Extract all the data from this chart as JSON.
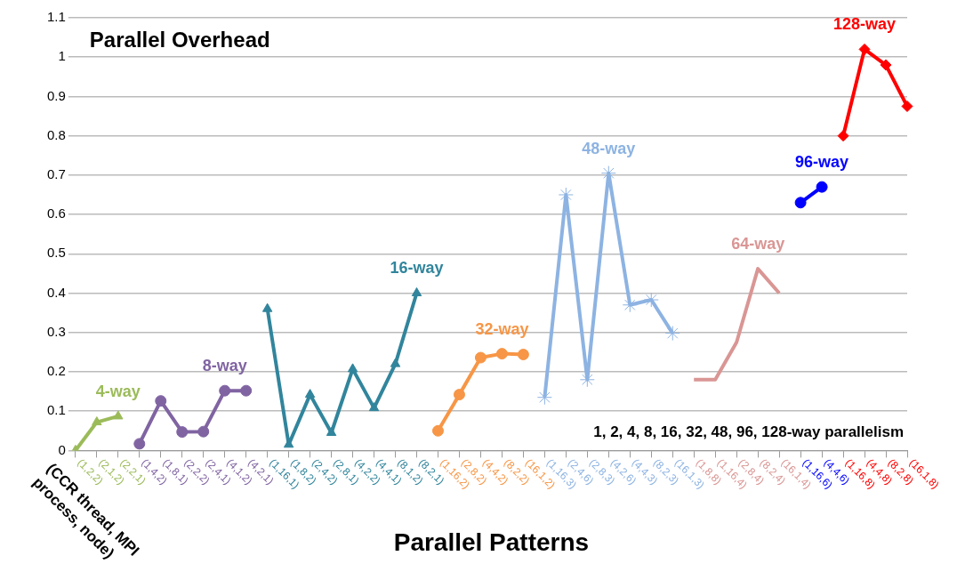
{
  "chart_data": {
    "type": "line",
    "categories": [
      "(1,2,2)",
      "(2,1,2)",
      "(2,2,1)",
      "(1,4,2)",
      "(1,8,1)",
      "(2,2,2)",
      "(2,4,1)",
      "(4,1,2)",
      "(4,2,1)",
      "(1,16,1)",
      "(1,8,2)",
      "(2,4,2)",
      "(2,8,1)",
      "(4,2,2)",
      "(4,4,1)",
      "(8,1,2)",
      "(8,2,1)",
      "(1,16,2)",
      "(2,8,2)",
      "(4,4,2)",
      "(8,2,2)",
      "(16,1,2)",
      "(1,16,3)",
      "(2,4,6)",
      "(2,8,3)",
      "(4,2,6)",
      "(4,4,3)",
      "(8,2,3)",
      "(16,1,3)",
      "(1,8,8)",
      "(1,16,4)",
      "(2,8,4)",
      "(8,2,4)",
      "(16,1,4)",
      "(1,16,6)",
      "(4,4,6)",
      "(1,16,8)",
      "(4,4,8)",
      "(8,2,8)",
      "(16,1,8)"
    ],
    "series": [
      {
        "name": "4-way",
        "color": "#9bbb59",
        "marker": "triangle",
        "values": [
          0,
          0.072,
          0.087,
          null,
          null,
          null,
          null,
          null,
          null,
          null,
          null,
          null,
          null,
          null,
          null,
          null,
          null,
          null,
          null,
          null,
          null,
          null,
          null,
          null,
          null,
          null,
          null,
          null,
          null,
          null,
          null,
          null,
          null,
          null,
          null,
          null,
          null,
          null,
          null,
          null
        ]
      },
      {
        "name": "8-way",
        "color": "#8064a2",
        "marker": "circle",
        "values": [
          null,
          null,
          null,
          0.017,
          0.126,
          0.047,
          0.048,
          0.152,
          0.152,
          null,
          null,
          null,
          null,
          null,
          null,
          null,
          null,
          null,
          null,
          null,
          null,
          null,
          null,
          null,
          null,
          null,
          null,
          null,
          null,
          null,
          null,
          null,
          null,
          null,
          null,
          null,
          null,
          null,
          null,
          null
        ]
      },
      {
        "name": "16-way",
        "color": "#31859c",
        "marker": "triangle",
        "values": [
          null,
          null,
          null,
          null,
          null,
          null,
          null,
          null,
          null,
          0.36,
          0.015,
          0.142,
          0.045,
          0.207,
          0.108,
          0.22,
          0.4,
          null,
          null,
          null,
          null,
          null,
          null,
          null,
          null,
          null,
          null,
          null,
          null,
          null,
          null,
          null,
          null,
          null,
          null,
          null,
          null,
          null,
          null,
          null
        ]
      },
      {
        "name": "32-way",
        "color": "#f79646",
        "marker": "circle",
        "values": [
          null,
          null,
          null,
          null,
          null,
          null,
          null,
          null,
          null,
          null,
          null,
          null,
          null,
          null,
          null,
          null,
          null,
          0.05,
          0.142,
          0.236,
          0.246,
          0.244,
          null,
          null,
          null,
          null,
          null,
          null,
          null,
          null,
          null,
          null,
          null,
          null,
          null,
          null,
          null,
          null,
          null,
          null
        ]
      },
      {
        "name": "48-way",
        "color": "#8db3e2",
        "marker": "cross",
        "values": [
          null,
          null,
          null,
          null,
          null,
          null,
          null,
          null,
          null,
          null,
          null,
          null,
          null,
          null,
          null,
          null,
          null,
          null,
          null,
          null,
          null,
          null,
          0.135,
          0.65,
          0.18,
          0.705,
          0.37,
          0.383,
          0.298,
          null,
          null,
          null,
          null,
          null,
          null,
          null,
          null,
          null,
          null,
          null
        ]
      },
      {
        "name": "64-way",
        "color": "#d99694",
        "marker": "none",
        "values": [
          null,
          null,
          null,
          null,
          null,
          null,
          null,
          null,
          null,
          null,
          null,
          null,
          null,
          null,
          null,
          null,
          null,
          null,
          null,
          null,
          null,
          null,
          null,
          null,
          null,
          null,
          null,
          null,
          null,
          0.18,
          0.18,
          0.275,
          0.462,
          0.4,
          null,
          null,
          null,
          null,
          null,
          null
        ]
      },
      {
        "name": "96-way",
        "color": "#0000ff",
        "marker": "circle",
        "values": [
          null,
          null,
          null,
          null,
          null,
          null,
          null,
          null,
          null,
          null,
          null,
          null,
          null,
          null,
          null,
          null,
          null,
          null,
          null,
          null,
          null,
          null,
          null,
          null,
          null,
          null,
          null,
          null,
          null,
          null,
          null,
          null,
          null,
          null,
          0.63,
          0.67,
          null,
          null,
          null,
          null
        ]
      },
      {
        "name": "128-way",
        "color": "#ff0000",
        "marker": "diamond",
        "values": [
          null,
          null,
          null,
          null,
          null,
          null,
          null,
          null,
          null,
          null,
          null,
          null,
          null,
          null,
          null,
          null,
          null,
          null,
          null,
          null,
          null,
          null,
          null,
          null,
          null,
          null,
          null,
          null,
          null,
          null,
          null,
          null,
          null,
          null,
          null,
          null,
          0.8,
          1.02,
          0.98,
          0.875
        ]
      }
    ],
    "xlabel": "Parallel Patterns",
    "ylim": [
      0,
      1.1
    ],
    "yticks": [
      0,
      0.1,
      0.2,
      0.3,
      0.4,
      0.5,
      0.6,
      0.7,
      0.8,
      0.9,
      1,
      1.1
    ],
    "grid": "y",
    "legend": false,
    "annotations": [
      "Parallel Overhead",
      "1, 2, 4, 8, 16, 32, 48, 96, 128-way parallelism",
      "(CCR thread, MPI process, node)"
    ]
  }
}
